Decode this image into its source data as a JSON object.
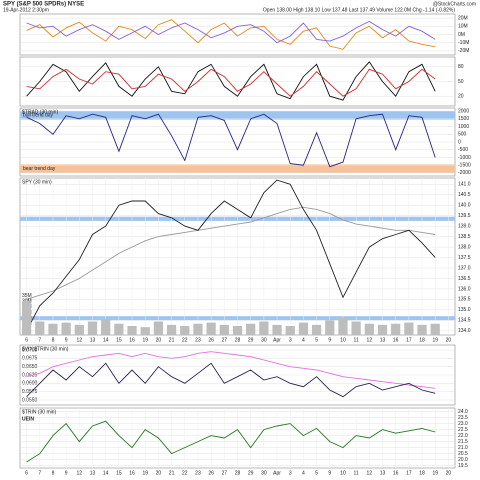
{
  "header": {
    "symbol": "SPY (S&P 500 SPDRs) NYSE",
    "date": "19-Apr-2012 2:30pm",
    "source": "@StockCharts.com",
    "quote": "Open 138.00  High 138.10  Low 137.48  Last 137.49  Volume 122.0M  Chg -1.14 (-0.82%)"
  },
  "chart_data": [
    {
      "type": "line",
      "tick_side": "right",
      "grid": true,
      "ylim": [
        -25000000,
        25000000
      ],
      "yticks": [
        {
          "value": 20000000,
          "label": "20M"
        },
        {
          "value": 10000000,
          "label": "10M"
        },
        {
          "value": 0,
          "label": "0M"
        },
        {
          "value": -10000000,
          "label": "-10M"
        },
        {
          "value": -20000000,
          "label": "-20M"
        }
      ],
      "series": [
        {
          "color": "#e08a1e",
          "values": [
            5000000,
            12000000,
            -3000000,
            8000000,
            15000000,
            2000000,
            -8000000,
            10000000,
            6000000,
            -5000000,
            12000000,
            18000000,
            4000000,
            -10000000,
            6000000,
            14000000,
            -2000000,
            8000000,
            10000000,
            -6000000,
            -12000000,
            4000000,
            8000000,
            -14000000,
            -18000000,
            2000000,
            10000000,
            -4000000,
            6000000,
            -8000000,
            -12000000,
            -15000000,
            null
          ]
        },
        {
          "color": "#8a5fd6",
          "values": [
            14000000,
            8000000,
            10000000,
            -2000000,
            6000000,
            12000000,
            4000000,
            -6000000,
            2000000,
            10000000,
            0,
            8000000,
            14000000,
            6000000,
            -4000000,
            2000000,
            10000000,
            12000000,
            4000000,
            -10000000,
            -2000000,
            14000000,
            -6000000,
            -8000000,
            -2000000,
            8000000,
            16000000,
            6000000,
            -2000000,
            10000000,
            4000000,
            -6000000,
            null
          ]
        }
      ]
    },
    {
      "type": "line",
      "tick_side": "right",
      "grid": true,
      "ylim": [
        0,
        100
      ],
      "yticks": [
        80,
        50,
        20
      ],
      "series": [
        {
          "color": "#111111",
          "values": [
            20,
            50,
            85,
            70,
            30,
            60,
            88,
            40,
            20,
            55,
            80,
            30,
            25,
            70,
            85,
            40,
            20,
            60,
            85,
            25,
            15,
            60,
            85,
            20,
            12,
            60,
            90,
            50,
            20,
            70,
            85,
            30,
            null
          ]
        },
        {
          "color": "#d62a2a",
          "values": [
            40,
            35,
            60,
            75,
            55,
            45,
            70,
            65,
            35,
            40,
            65,
            55,
            30,
            50,
            75,
            60,
            30,
            45,
            70,
            45,
            20,
            40,
            70,
            45,
            20,
            35,
            75,
            65,
            35,
            50,
            75,
            55,
            null
          ]
        }
      ]
    },
    {
      "type": "line",
      "title": "$TRAD (30 min)",
      "tick_side": "right",
      "grid": true,
      "ylim": [
        -2200,
        2200
      ],
      "yticks": [
        2000,
        1500,
        1000,
        500,
        0,
        -500,
        -1000,
        -1500,
        -2000
      ],
      "bands": [
        {
          "label": "bull trend day",
          "from": 1450,
          "to": 2000,
          "color": "#9ec5f0"
        },
        {
          "label": "bear trend day",
          "from": -2000,
          "to": -1450,
          "color": "#f5c29a"
        }
      ],
      "series": [
        {
          "color": "#26268a",
          "values": [
            1600,
            1200,
            500,
            1700,
            1500,
            1800,
            1600,
            -600,
            1700,
            1500,
            1800,
            400,
            -1200,
            1600,
            1700,
            1400,
            -500,
            1500,
            1800,
            1200,
            -1400,
            -1500,
            600,
            -1600,
            -1300,
            1500,
            1700,
            1800,
            -500,
            1700,
            1600,
            -1000,
            null
          ]
        }
      ]
    },
    {
      "type": "line",
      "title": "SPY (30 min)",
      "tick_side": "right",
      "grid": true,
      "ylim": [
        133.8,
        141.3
      ],
      "yticks": [
        {
          "value": 141,
          "label": "141.0"
        },
        140.5,
        {
          "value": 140,
          "label": "140.0"
        },
        139.5,
        {
          "value": 139,
          "label": "139.0"
        },
        138.5,
        {
          "value": 138,
          "label": "138.0"
        },
        137.5,
        {
          "value": 137,
          "label": "137.0"
        },
        136.5,
        {
          "value": 136,
          "label": "136.0"
        },
        135.5,
        {
          "value": 135,
          "label": "135.0"
        },
        134.5,
        {
          "value": 134,
          "label": "134.0"
        }
      ],
      "bands": [
        {
          "from": 139.25,
          "to": 139.45,
          "color": "#9ec5f0"
        },
        {
          "from": 134.5,
          "to": 134.7,
          "color": "#9ec5f0"
        }
      ],
      "categories": [
        "6",
        "7",
        "8",
        "9",
        "12",
        "13",
        "14",
        "15",
        "16",
        "19",
        "20",
        "21",
        "22",
        "23",
        "26",
        "27",
        "28",
        "29",
        "30",
        "Apr",
        "3",
        "4",
        "5",
        "9",
        "10",
        "11",
        "12",
        "13",
        "16",
        "17",
        "18",
        "19",
        "20"
      ],
      "series": [
        {
          "color": "#999999",
          "values": [
            135.5,
            135.7,
            135.9,
            136.2,
            136.5,
            136.9,
            137.3,
            137.7,
            138.0,
            138.3,
            138.5,
            138.6,
            138.7,
            138.8,
            138.9,
            139.0,
            139.1,
            139.2,
            139.4,
            139.6,
            139.8,
            139.9,
            139.8,
            139.6,
            139.3,
            139.1,
            139.0,
            138.9,
            138.8,
            138.8,
            138.7,
            138.6,
            null
          ]
        },
        {
          "color": "#222222",
          "values": [
            134.0,
            135.2,
            135.8,
            136.6,
            137.4,
            138.6,
            139.0,
            140.0,
            140.2,
            140.2,
            139.6,
            139.4,
            139.0,
            138.8,
            139.6,
            140.2,
            139.8,
            139.4,
            140.6,
            141.2,
            141.0,
            139.8,
            138.8,
            137.2,
            135.6,
            136.8,
            138.0,
            138.4,
            138.6,
            138.8,
            138.2,
            137.5,
            null
          ]
        }
      ]
    },
    {
      "type": "bar",
      "tick_side": "left",
      "grid": false,
      "color": "#bdbdbd",
      "ylim": [
        0,
        40000000
      ],
      "yticks": [
        {
          "value": 35000000,
          "label": "35M"
        },
        {
          "value": 30000000,
          "label": "30M"
        },
        {
          "value": 25000000,
          "label": "25M"
        },
        {
          "value": 20000000,
          "label": "20M"
        },
        {
          "value": 15000000,
          "label": "15M"
        },
        {
          "value": 10000000,
          "label": "10M"
        },
        {
          "value": 5000000,
          "label": "5M"
        }
      ],
      "values": [
        30000000,
        12000000,
        10000000,
        11000000,
        9000000,
        12000000,
        14000000,
        10000000,
        8000000,
        7000000,
        12000000,
        9000000,
        8000000,
        10000000,
        11000000,
        9000000,
        8000000,
        10000000,
        12000000,
        9000000,
        8000000,
        11000000,
        9000000,
        13000000,
        15000000,
        12000000,
        10000000,
        9000000,
        10000000,
        11000000,
        9000000,
        10000000,
        null
      ]
    },
    {
      "type": "line",
      "title": "$VIX:$TRIN (30 min)",
      "tick_side": "left",
      "grid": true,
      "ylim": [
        0.0535,
        0.0715
      ],
      "yticks": [
        {
          "value": 0.07,
          "label": "0.0700"
        },
        {
          "value": 0.0675,
          "label": "0.0675"
        },
        {
          "value": 0.065,
          "label": "0.0650"
        },
        {
          "value": 0.0625,
          "label": "0.0625"
        },
        {
          "value": 0.06,
          "label": "0.0600"
        },
        {
          "value": 0.0575,
          "label": "0.0575"
        },
        {
          "value": 0.055,
          "label": "0.0550"
        }
      ],
      "series": [
        {
          "color": "#e070e0",
          "values": [
            0.062,
            0.063,
            0.065,
            0.066,
            0.067,
            0.068,
            0.0685,
            0.069,
            0.068,
            0.069,
            0.068,
            0.0675,
            0.068,
            0.069,
            0.0695,
            0.069,
            0.0685,
            0.068,
            0.067,
            0.066,
            0.065,
            0.0645,
            0.064,
            0.063,
            0.062,
            0.0615,
            0.061,
            0.0605,
            0.06,
            0.0595,
            0.059,
            0.0585,
            null
          ]
        },
        {
          "color": "#26264a",
          "values": [
            0.056,
            0.06,
            0.064,
            0.061,
            0.065,
            0.062,
            0.066,
            0.06,
            0.064,
            0.06,
            0.065,
            0.062,
            0.06,
            0.063,
            0.066,
            0.06,
            0.062,
            0.064,
            0.061,
            0.062,
            0.06,
            0.059,
            0.062,
            0.058,
            0.056,
            0.059,
            0.06,
            0.058,
            0.059,
            0.06,
            0.058,
            0.057,
            null
          ]
        }
      ]
    },
    {
      "type": "line",
      "title": "$TRIN (30 min)",
      "tick_side": "right",
      "grid": true,
      "ylim": [
        19.3,
        24.3
      ],
      "yticks": [
        {
          "value": 24,
          "label": "24.0"
        },
        23.5,
        {
          "value": 23,
          "label": "23.0"
        },
        22.5,
        {
          "value": 22,
          "label": "22.0"
        },
        21.5,
        {
          "value": 21,
          "label": "21.0"
        },
        20.5,
        {
          "value": 20,
          "label": "20.0"
        },
        19.5
      ],
      "categories": [
        "6",
        "7",
        "8",
        "9",
        "12",
        "13",
        "14",
        "15",
        "16",
        "19",
        "20",
        "21",
        "22",
        "23",
        "26",
        "27",
        "28",
        "29",
        "30",
        "Apr",
        "3",
        "4",
        "5",
        "9",
        "10",
        "11",
        "12",
        "13",
        "16",
        "17",
        "18",
        "19",
        "20"
      ],
      "series": [
        {
          "name": "UEIN",
          "color": "#1f7a1f",
          "values": [
            19.8,
            20.5,
            22.0,
            23.0,
            21.5,
            22.8,
            23.2,
            22.0,
            21.0,
            22.5,
            21.8,
            20.5,
            21.0,
            21.5,
            22.0,
            21.8,
            22.5,
            21.0,
            22.5,
            22.8,
            23.0,
            22.0,
            22.6,
            21.5,
            21.0,
            22.0,
            21.8,
            22.5,
            22.2,
            22.4,
            22.6,
            22.3,
            null
          ]
        }
      ]
    }
  ]
}
